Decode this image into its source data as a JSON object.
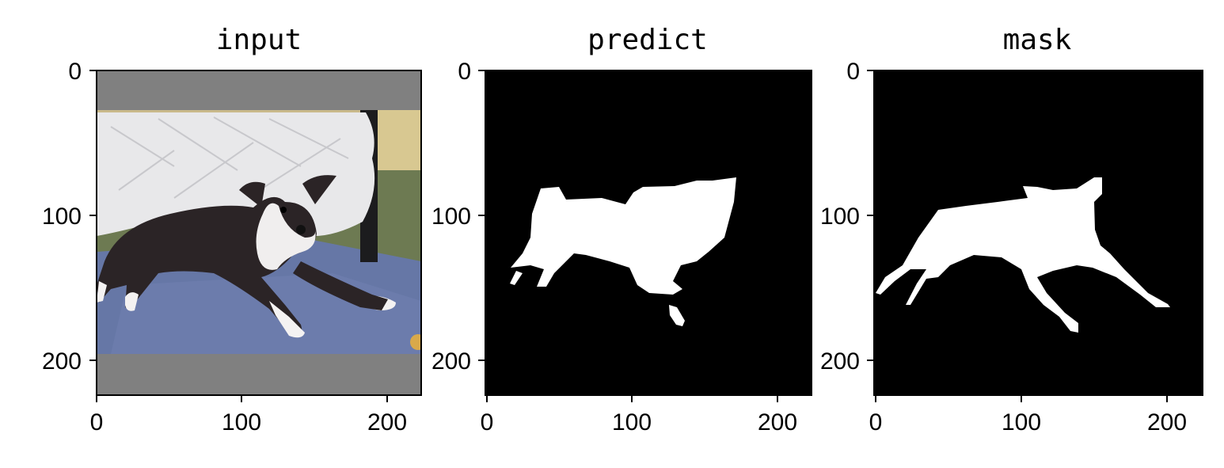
{
  "chart_data": [
    {
      "type": "image",
      "title": "input",
      "xticks": [
        0,
        100,
        200
      ],
      "yticks": [
        0,
        100,
        200
      ],
      "xlim": [
        0,
        224
      ],
      "ylim": [
        224,
        0
      ],
      "content": "photo of a dog lying on a blue rug in front of a bed, with gray padding bands top and bottom",
      "colors": {
        "pad": "#808080"
      }
    },
    {
      "type": "image",
      "title": "predict",
      "xticks": [
        0,
        100,
        200
      ],
      "yticks": [
        0,
        100,
        200
      ],
      "xlim": [
        0,
        224
      ],
      "ylim": [
        224,
        0
      ],
      "content": "binary predicted segmentation mask (white blob on black)",
      "colors": {
        "background": "#000000",
        "foreground": "#ffffff"
      }
    },
    {
      "type": "image",
      "title": "mask",
      "xticks": [
        0,
        100,
        200
      ],
      "yticks": [
        0,
        100,
        200
      ],
      "xlim": [
        0,
        224
      ],
      "ylim": [
        224,
        0
      ],
      "content": "binary ground-truth segmentation mask (white dog silhouette on black)",
      "colors": {
        "background": "#000000",
        "foreground": "#ffffff"
      }
    }
  ]
}
